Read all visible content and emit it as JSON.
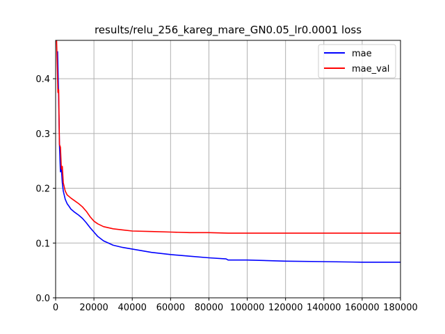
{
  "chart_data": {
    "type": "line",
    "title": "results/relu_256_kareg_mare_GN0.05_lr0.0001 loss",
    "xlabel": "",
    "ylabel": "",
    "xlim": [
      0,
      180000
    ],
    "ylim": [
      0,
      0.47
    ],
    "grid": true,
    "legend_position": "top-right",
    "x_ticks": [
      "0",
      "20000",
      "40000",
      "60000",
      "80000",
      "100000",
      "120000",
      "140000",
      "160000",
      "180000"
    ],
    "y_ticks": [
      "0.0",
      "0.1",
      "0.2",
      "0.3",
      "0.4"
    ],
    "series": [
      {
        "name": "mae",
        "color": "#0000ff",
        "x": [
          1000,
          1500,
          2000,
          2500,
          3000,
          3500,
          4000,
          5000,
          6000,
          7000,
          8000,
          10000,
          12000,
          14000,
          16000,
          18000,
          20000,
          22000,
          25000,
          30000,
          35000,
          40000,
          50000,
          60000,
          70000,
          80000,
          89000,
          90000,
          100000,
          120000,
          140000,
          160000,
          180000
        ],
        "y": [
          0.45,
          0.38,
          0.28,
          0.23,
          0.235,
          0.21,
          0.195,
          0.18,
          0.172,
          0.167,
          0.162,
          0.156,
          0.151,
          0.145,
          0.137,
          0.128,
          0.12,
          0.112,
          0.104,
          0.096,
          0.092,
          0.089,
          0.083,
          0.079,
          0.076,
          0.073,
          0.071,
          0.069,
          0.069,
          0.067,
          0.066,
          0.065,
          0.065
        ]
      },
      {
        "name": "mae_val",
        "color": "#ff0000",
        "x": [
          500,
          800,
          1200,
          1600,
          2000,
          2500,
          3000,
          3500,
          4000,
          5000,
          6000,
          8000,
          10000,
          12000,
          14000,
          16000,
          18000,
          20000,
          22000,
          25000,
          30000,
          35000,
          40000,
          50000,
          60000,
          70000,
          80000,
          90000,
          100000,
          120000,
          140000,
          160000,
          180000
        ],
        "y": [
          0.47,
          0.43,
          0.375,
          0.38,
          0.28,
          0.275,
          0.235,
          0.24,
          0.21,
          0.195,
          0.188,
          0.182,
          0.177,
          0.172,
          0.166,
          0.158,
          0.148,
          0.14,
          0.135,
          0.13,
          0.126,
          0.124,
          0.122,
          0.121,
          0.12,
          0.119,
          0.119,
          0.118,
          0.118,
          0.118,
          0.118,
          0.118,
          0.118
        ]
      }
    ]
  }
}
